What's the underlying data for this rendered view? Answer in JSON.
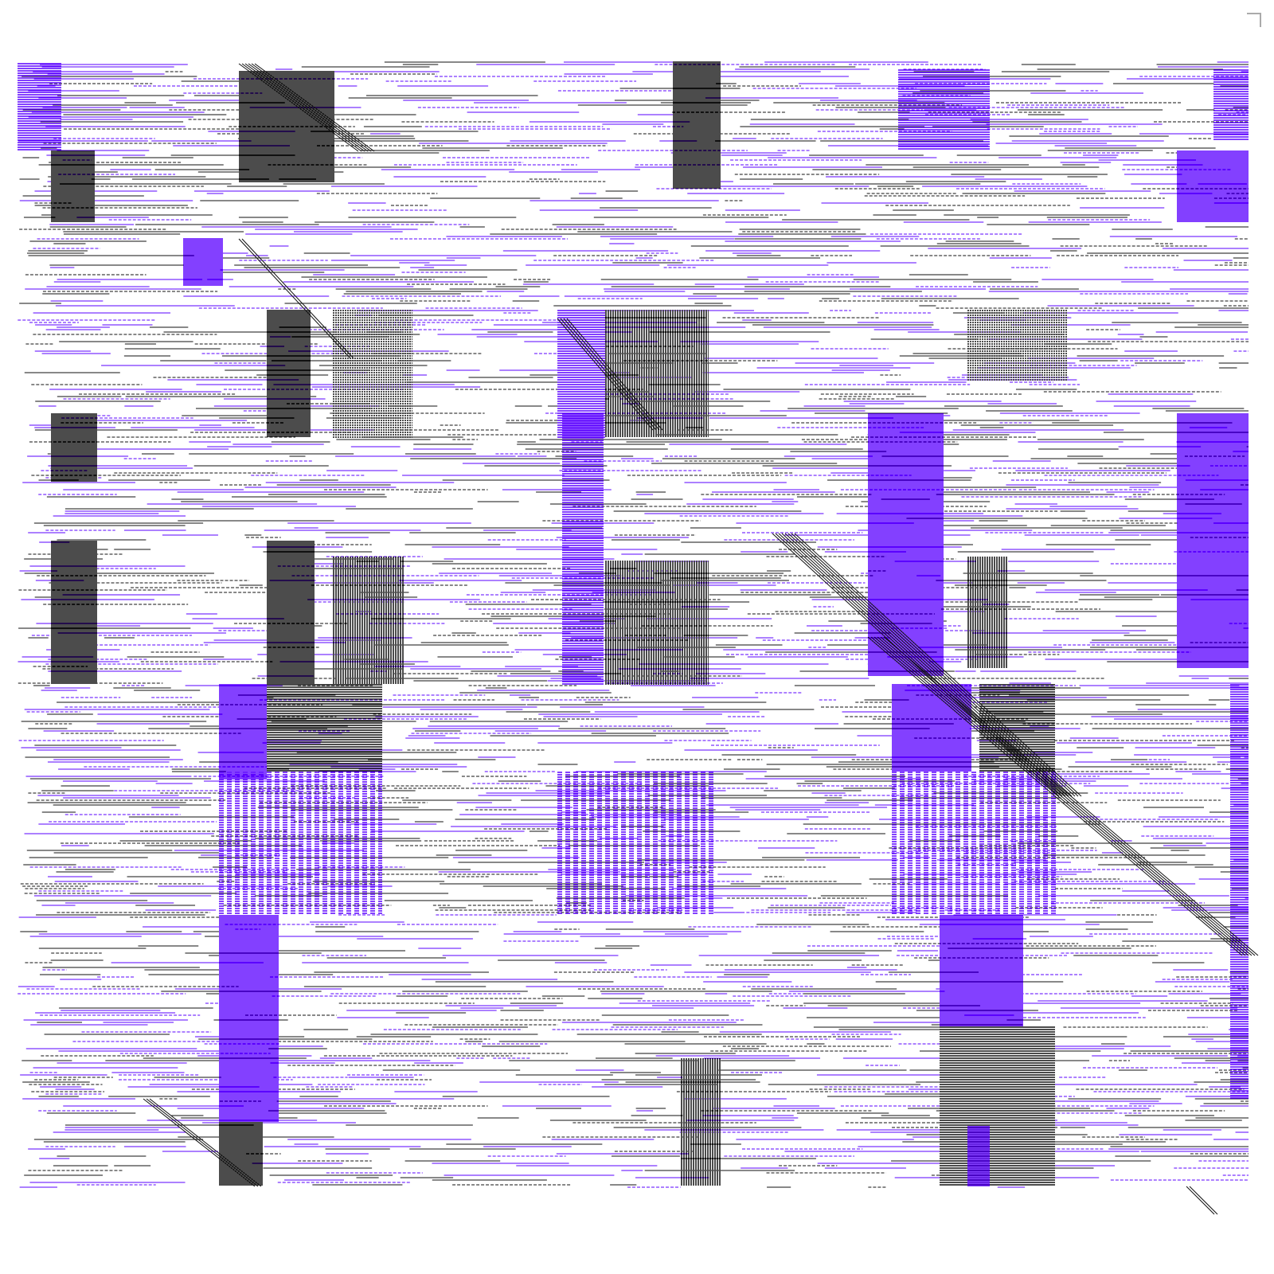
{
  "colors": {
    "background": "#ffffff",
    "ink": "#111111",
    "accent": "#5a00ff",
    "mark": "#aaaaaa"
  },
  "icons": {
    "corner": "corner-bracket-icon"
  }
}
